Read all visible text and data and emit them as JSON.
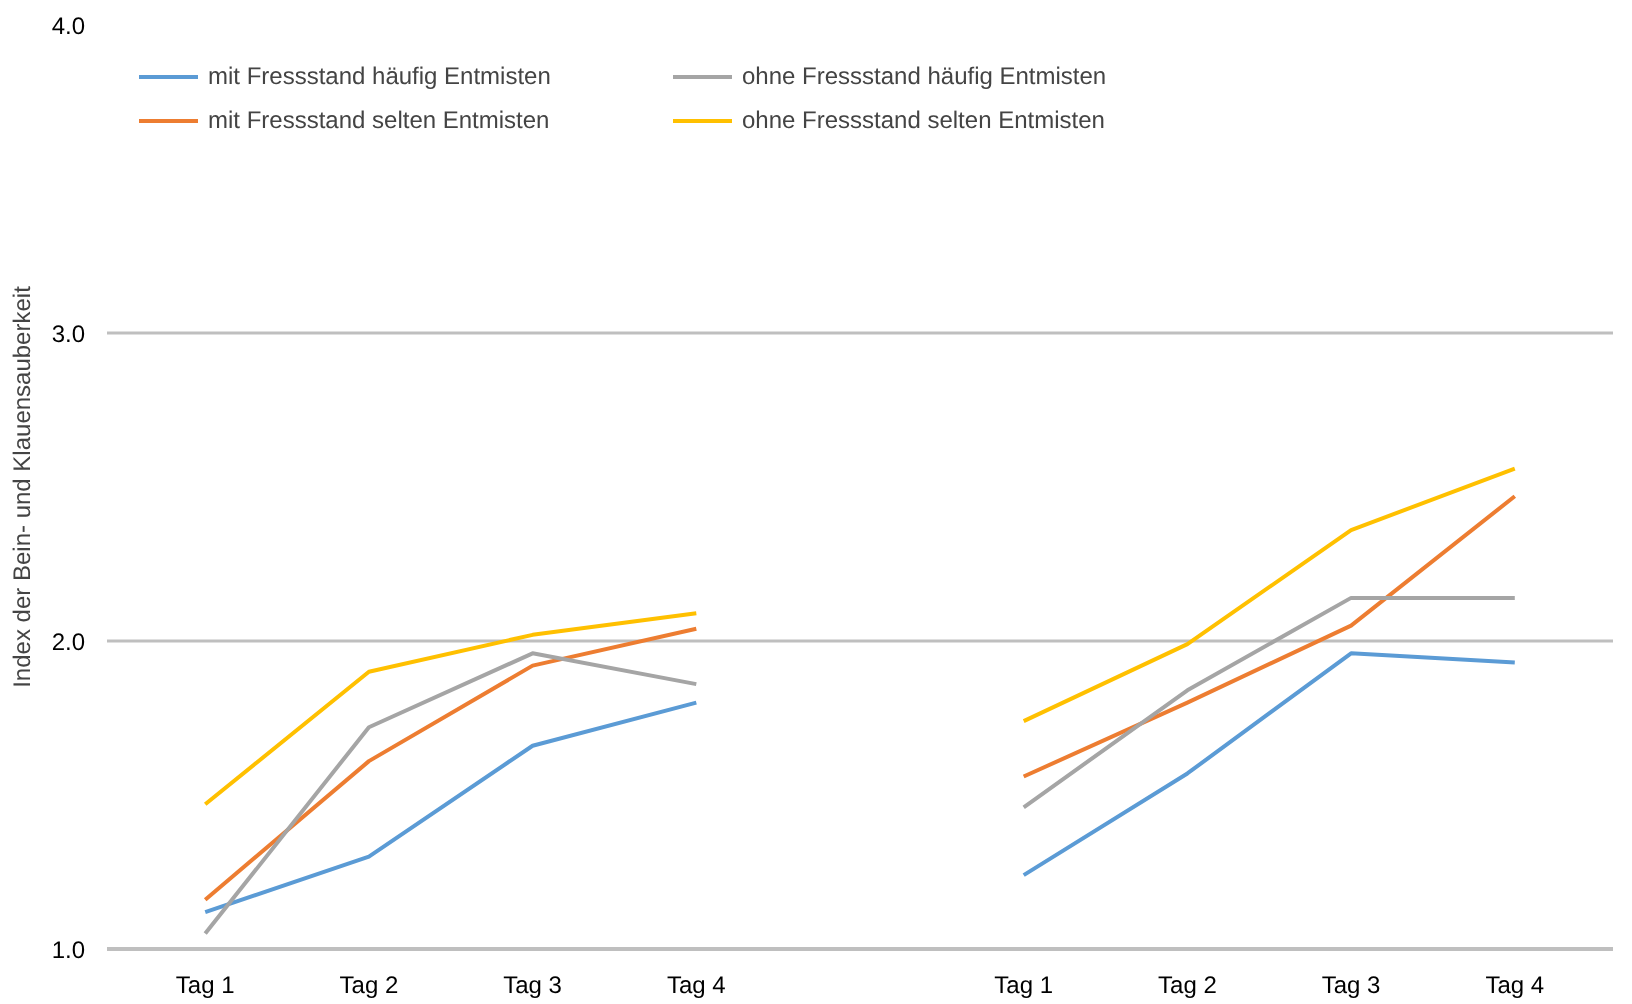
{
  "chart_data": {
    "type": "line",
    "ylabel": "Index der Bein- und Klauensauberkeit",
    "categories": [
      "Tag 1",
      "Tag 2",
      "Tag 3",
      "Tag 4",
      null,
      "Tag 1",
      "Tag 2",
      "Tag 3",
      "Tag 4"
    ],
    "series": [
      {
        "name": "mit Fressstand häufig Entmisten",
        "color": "#5b9bd5",
        "values": [
          1.12,
          1.3,
          1.66,
          1.8,
          null,
          1.24,
          1.57,
          1.96,
          1.93
        ]
      },
      {
        "name": "mit Fressstand selten Entmisten",
        "color": "#ed7d31",
        "values": [
          1.16,
          1.61,
          1.92,
          2.04,
          null,
          1.56,
          1.8,
          2.05,
          2.47
        ]
      },
      {
        "name": "ohne Fressstand häufig Entmisten",
        "color": "#a5a5a5",
        "values": [
          1.05,
          1.72,
          1.96,
          1.86,
          null,
          1.46,
          1.84,
          2.14,
          2.14
        ]
      },
      {
        "name": "ohne Fressstand selten Entmisten",
        "color": "#ffc000",
        "values": [
          1.47,
          1.9,
          2.02,
          2.09,
          null,
          1.74,
          1.99,
          2.36,
          2.56
        ]
      }
    ],
    "ylim": [
      1,
      4
    ],
    "yticks": [
      {
        "value": 1,
        "label": "1.0"
      },
      {
        "value": 2,
        "label": "2.0"
      },
      {
        "value": 3,
        "label": "3.0"
      },
      {
        "value": 4,
        "label": "4.0"
      }
    ],
    "grid": "y",
    "legend": "top left",
    "marker": "none",
    "line_style": "solid"
  }
}
